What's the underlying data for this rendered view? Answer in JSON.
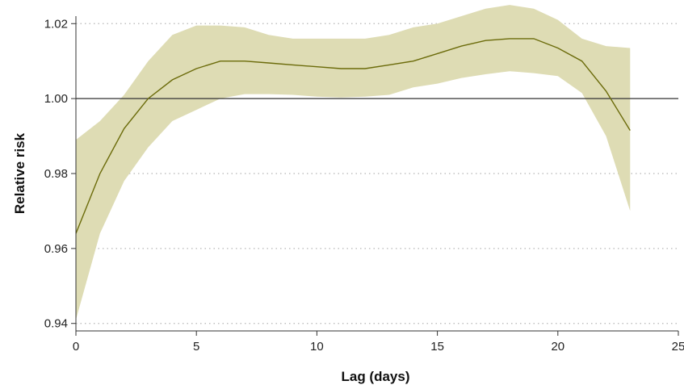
{
  "chart_data": {
    "type": "line",
    "title": "",
    "xlabel": "Lag (days)",
    "ylabel": "Relative risk",
    "xlim": [
      0,
      25
    ],
    "ylim": [
      0.938,
      1.022
    ],
    "x_ticks": [
      0,
      5,
      10,
      15,
      20,
      25
    ],
    "y_ticks": [
      0.94,
      0.96,
      0.98,
      1.0,
      1.02
    ],
    "x_tick_labels": [
      "0",
      "5",
      "10",
      "15",
      "20",
      "25"
    ],
    "y_tick_labels": [
      "0.94",
      "0.96",
      "0.98",
      "1.00",
      "1.02"
    ],
    "grid": "horizontal dotted",
    "reference_line": 1.0,
    "series": [
      {
        "color": "#6b6b0a",
        "band_color": "#dedcb4",
        "x": [
          0,
          1,
          2,
          3,
          4,
          5,
          6,
          7,
          8,
          9,
          10,
          11,
          12,
          13,
          14,
          15,
          16,
          17,
          18,
          19,
          20,
          21,
          22,
          23
        ],
        "values": [
          0.964,
          0.98,
          0.992,
          1.0,
          1.005,
          1.008,
          1.01,
          1.01,
          1.0095,
          1.009,
          1.0085,
          1.008,
          1.008,
          1.009,
          1.01,
          1.012,
          1.014,
          1.0155,
          1.016,
          1.016,
          1.0135,
          1.01,
          1.002,
          0.9915
        ],
        "lower": [
          0.941,
          0.964,
          0.978,
          0.987,
          0.994,
          0.997,
          1.0,
          1.0012,
          1.0012,
          1.001,
          1.0005,
          1.0003,
          1.0005,
          1.001,
          1.003,
          1.004,
          1.0055,
          1.0065,
          1.0073,
          1.0068,
          1.006,
          1.0015,
          0.99,
          0.97
        ],
        "upper": [
          0.989,
          0.994,
          1.001,
          1.01,
          1.017,
          1.0195,
          1.0195,
          1.019,
          1.017,
          1.016,
          1.016,
          1.016,
          1.016,
          1.017,
          1.019,
          1.02,
          1.022,
          1.024,
          1.025,
          1.024,
          1.021,
          1.016,
          1.014,
          1.0135
        ]
      }
    ]
  }
}
